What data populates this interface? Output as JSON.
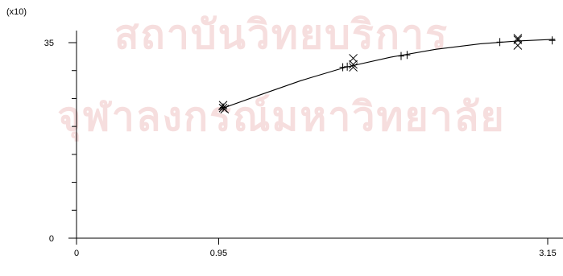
{
  "watermark": {
    "line1": "สถาบันวิทยบริการ",
    "line2": "จุฬาลงกรณ์มหาวิทยาลัย"
  },
  "chart_data": {
    "type": "scatter",
    "title": "",
    "xlabel": "",
    "ylabel": "",
    "y_multiplier_label": "(x10)",
    "xlim": [
      0,
      3.15
    ],
    "ylim": [
      0,
      35
    ],
    "x_ticks": [
      0,
      0.95,
      3.15
    ],
    "x_tick_labels": [
      "0",
      "0.95",
      "3.15"
    ],
    "y_ticks": [
      0,
      35
    ],
    "y_tick_labels": [
      "0",
      "35"
    ],
    "grid": false,
    "series": [
      {
        "marker": "x",
        "points": [
          [
            0.98,
            23.8
          ],
          [
            0.98,
            23.3
          ],
          [
            0.99,
            23.1
          ],
          [
            1.85,
            32.2
          ],
          [
            1.85,
            31.1
          ],
          [
            1.85,
            30.6
          ],
          [
            2.95,
            35.8
          ],
          [
            2.95,
            35.5
          ],
          [
            2.95,
            34.5
          ]
        ]
      },
      {
        "marker": "+",
        "points": [
          [
            0.98,
            23.4
          ],
          [
            1.78,
            30.6
          ],
          [
            1.81,
            30.7
          ],
          [
            2.17,
            32.6
          ],
          [
            2.21,
            32.8
          ],
          [
            2.83,
            35.1
          ],
          [
            3.18,
            35.4
          ]
        ]
      },
      {
        "marker": "line",
        "curve": [
          [
            0.95,
            23.0
          ],
          [
            1.2,
            25.4
          ],
          [
            1.5,
            28.2
          ],
          [
            1.8,
            30.6
          ],
          [
            2.1,
            32.4
          ],
          [
            2.4,
            33.8
          ],
          [
            2.7,
            34.8
          ],
          [
            2.95,
            35.3
          ],
          [
            3.2,
            35.6
          ]
        ]
      }
    ]
  }
}
